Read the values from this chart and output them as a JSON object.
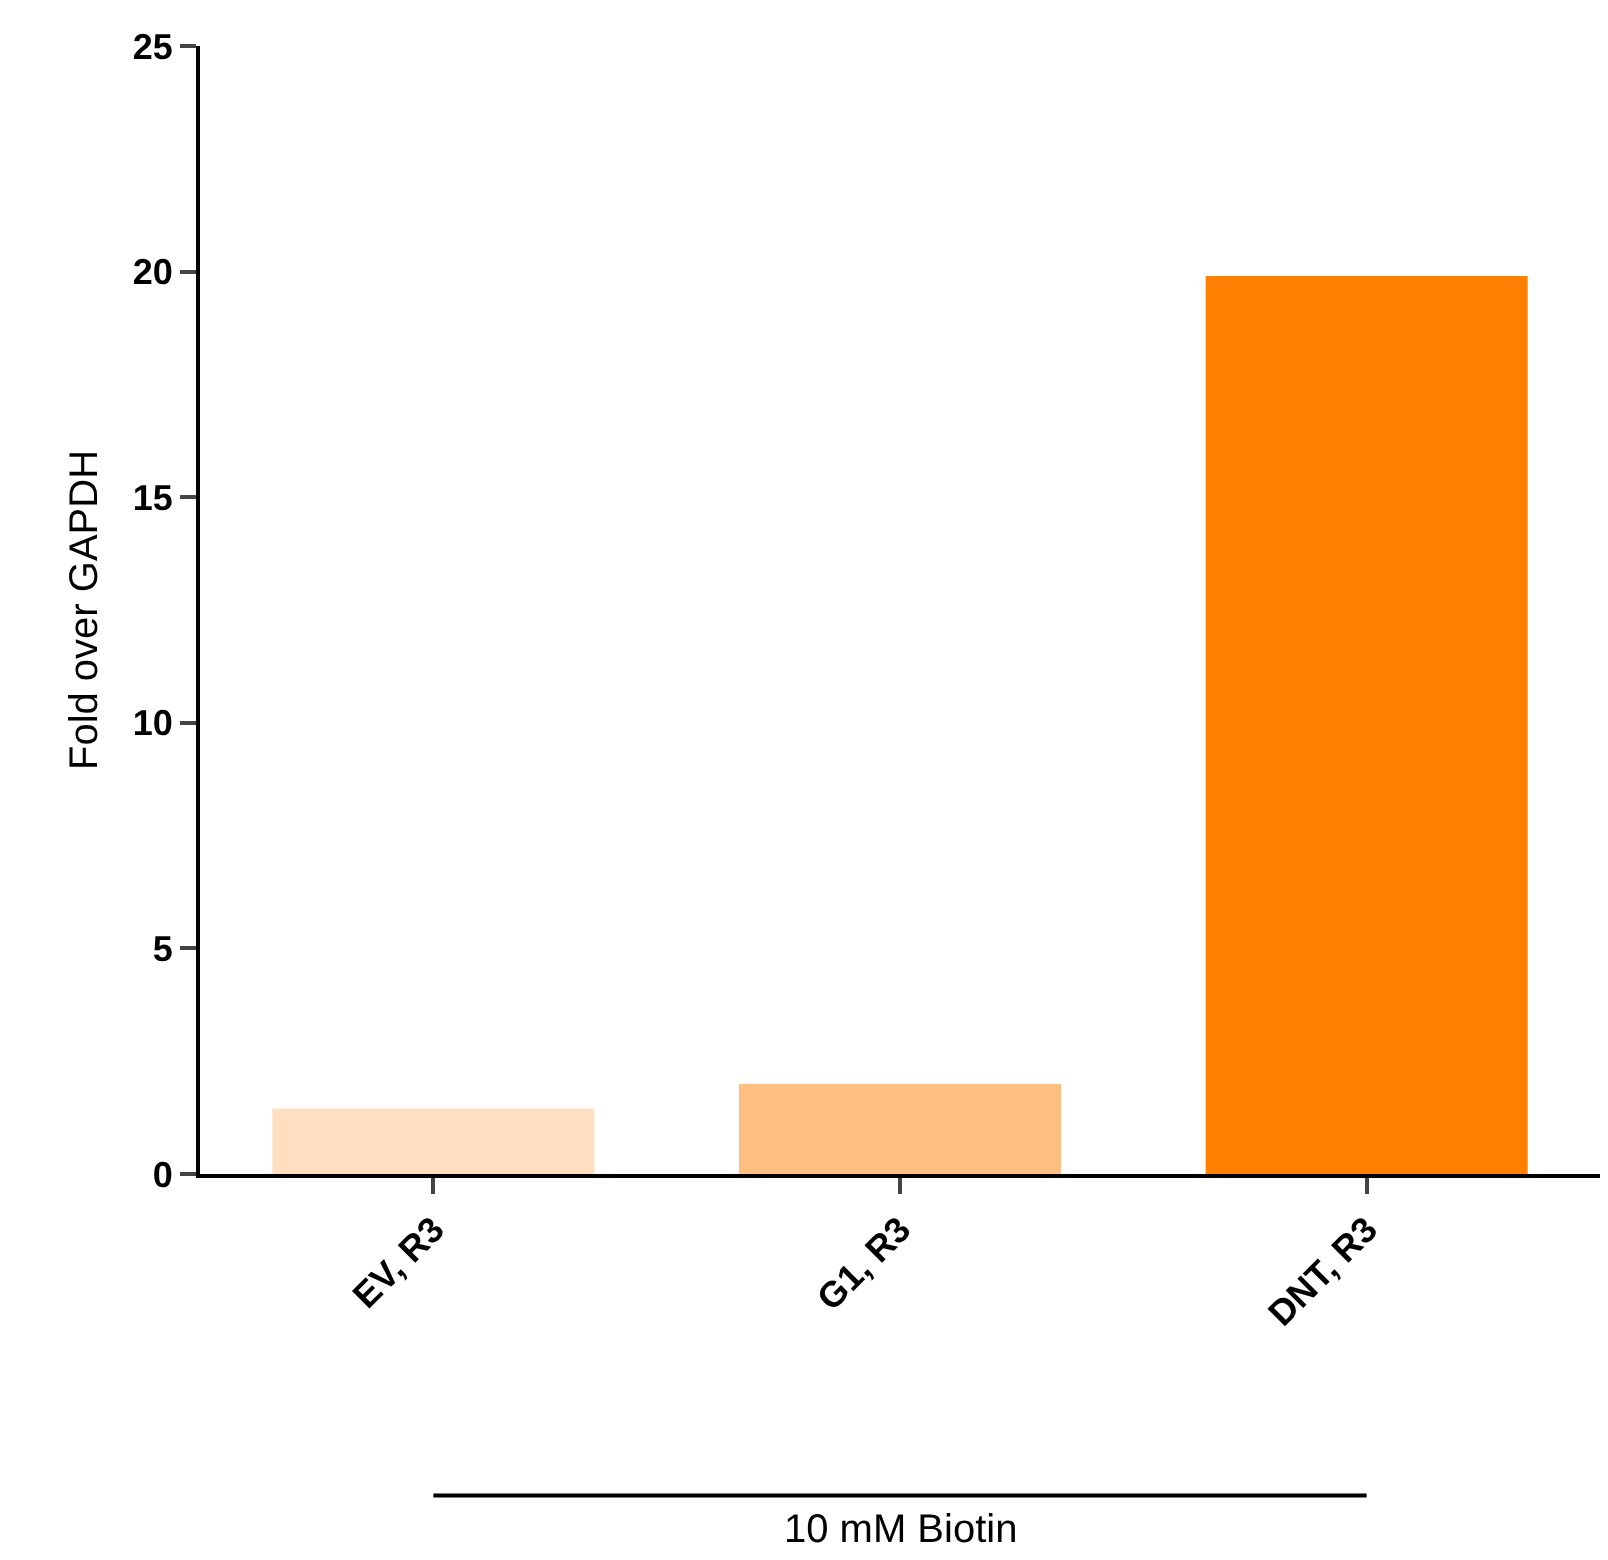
{
  "chart_data": {
    "type": "bar",
    "ylabel": "Fold over GAPDH",
    "categories": [
      "EV, R3",
      "G1, R3",
      "DNT, R3"
    ],
    "values": [
      1.45,
      2.0,
      19.9
    ],
    "colors": [
      "#ffdfbf",
      "#ffbf80",
      "#ff8000"
    ],
    "ylim": [
      0,
      25
    ],
    "yticks": [
      0,
      5,
      10,
      15,
      20,
      25
    ],
    "grid": false,
    "annotations": [
      "10 mM Biotin"
    ]
  }
}
